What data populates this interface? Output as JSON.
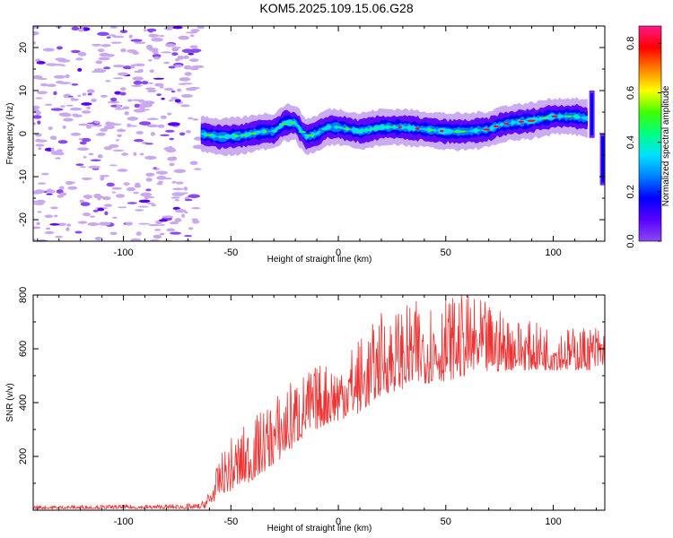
{
  "title": "KOM5.2025.109.15.06.G28",
  "colors": {
    "line": "#ee3333",
    "frame": "#000000",
    "background": "#ffffff",
    "colormap": [
      "#ffffff",
      "#c9a8f0",
      "#8a4af0",
      "#5a00ff",
      "#0000ff",
      "#0080ff",
      "#00e0ff",
      "#00ff80",
      "#40ff00",
      "#ffff00",
      "#ff8000",
      "#ff0000",
      "#ff1a8a"
    ]
  },
  "chart_data": [
    {
      "type": "heatmap",
      "xlabel": "Height of straight line (km)",
      "ylabel": "Frequency (Hz)",
      "xlim": [
        -142,
        124
      ],
      "ylim": [
        -25,
        25
      ],
      "xticks": [
        -100,
        -50,
        0,
        50,
        100
      ],
      "yticks": [
        -20,
        -10,
        0,
        10,
        20
      ],
      "colorbar": {
        "label": "Normalized spectral amplitude",
        "range": [
          0,
          0.87
        ],
        "ticks": [
          "0.0",
          "0.2",
          "0.4",
          "0.6",
          "0.8"
        ]
      },
      "noise_region_x": [
        -142,
        -64
      ],
      "ridge": {
        "x": [
          -64,
          -55,
          -45,
          -40,
          -35,
          -30,
          -25,
          -20,
          -15,
          -10,
          -5,
          0,
          10,
          20,
          30,
          40,
          50,
          60,
          70,
          75,
          80,
          90,
          100,
          110,
          116
        ],
        "y": [
          0,
          -0.8,
          -0.5,
          0,
          0.5,
          0.5,
          2.5,
          2.5,
          -0.8,
          0,
          1.5,
          1.5,
          0.5,
          1.5,
          1.5,
          1,
          0.5,
          0.5,
          1,
          2,
          2.5,
          3,
          4,
          4,
          3.5
        ],
        "peak_amplitude_x": [
          20,
          110
        ]
      },
      "edge_features": [
        {
          "x": 118,
          "y": [
            -1,
            10
          ]
        },
        {
          "x": 123,
          "y": [
            -12,
            0
          ]
        }
      ]
    },
    {
      "type": "line",
      "xlabel": "Height of straight line (km)",
      "ylabel": "SNR (v/v)",
      "xlim": [
        -142,
        124
      ],
      "ylim": [
        0,
        800
      ],
      "xticks": [
        -100,
        -50,
        0,
        50,
        100
      ],
      "yticks": [
        200,
        400,
        600,
        800
      ],
      "series": [
        {
          "x": [
            -142,
            -100,
            -80,
            -64,
            -60,
            -57,
            -55,
            -50,
            -45,
            -40,
            -35,
            -30,
            -25,
            -20,
            -15,
            -10,
            -5,
            0,
            5,
            10,
            15,
            20,
            30,
            40,
            50,
            60,
            70,
            80,
            90,
            100,
            110,
            124
          ],
          "y_low": [
            5,
            5,
            5,
            5,
            10,
            40,
            60,
            70,
            90,
            110,
            140,
            170,
            200,
            240,
            280,
            300,
            320,
            330,
            350,
            360,
            390,
            430,
            450,
            470,
            480,
            500,
            510,
            520,
            520,
            520,
            520,
            520
          ],
          "y_high": [
            18,
            20,
            22,
            25,
            80,
            150,
            200,
            270,
            310,
            340,
            380,
            420,
            470,
            500,
            520,
            540,
            560,
            570,
            610,
            650,
            680,
            740,
            760,
            790,
            800,
            800,
            770,
            730,
            700,
            690,
            680,
            700
          ]
        }
      ]
    }
  ]
}
